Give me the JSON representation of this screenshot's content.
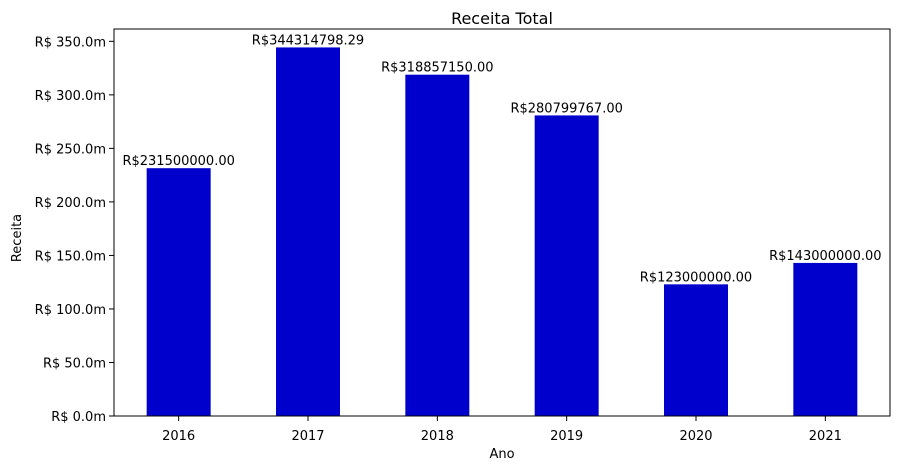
{
  "chart_data": {
    "type": "bar",
    "title": "Receita Total",
    "xlabel": "Ano",
    "ylabel": "Receita",
    "categories": [
      "2016",
      "2017",
      "2018",
      "2019",
      "2020",
      "2021"
    ],
    "values": [
      231500000.0,
      344314798.29,
      318857150.0,
      280799767.0,
      123000000.0,
      143000000.0
    ],
    "data_labels": [
      "R$231500000.00",
      "R$344314798.29",
      "R$318857150.00",
      "R$280799767.00",
      "R$123000000.00",
      "R$143000000.00"
    ],
    "ylim": [
      0,
      361530538.2
    ],
    "yticks": [
      0,
      50000000,
      100000000,
      150000000,
      200000000,
      250000000,
      300000000,
      350000000
    ],
    "ytick_labels": [
      "R$ 0.0m",
      "R$ 50.0m",
      "R$ 100.0m",
      "R$ 150.0m",
      "R$ 200.0m",
      "R$ 250.0m",
      "R$ 300.0m",
      "R$ 350.0m"
    ],
    "bar_color": "#0000cd",
    "grid": false,
    "legend": "none"
  }
}
